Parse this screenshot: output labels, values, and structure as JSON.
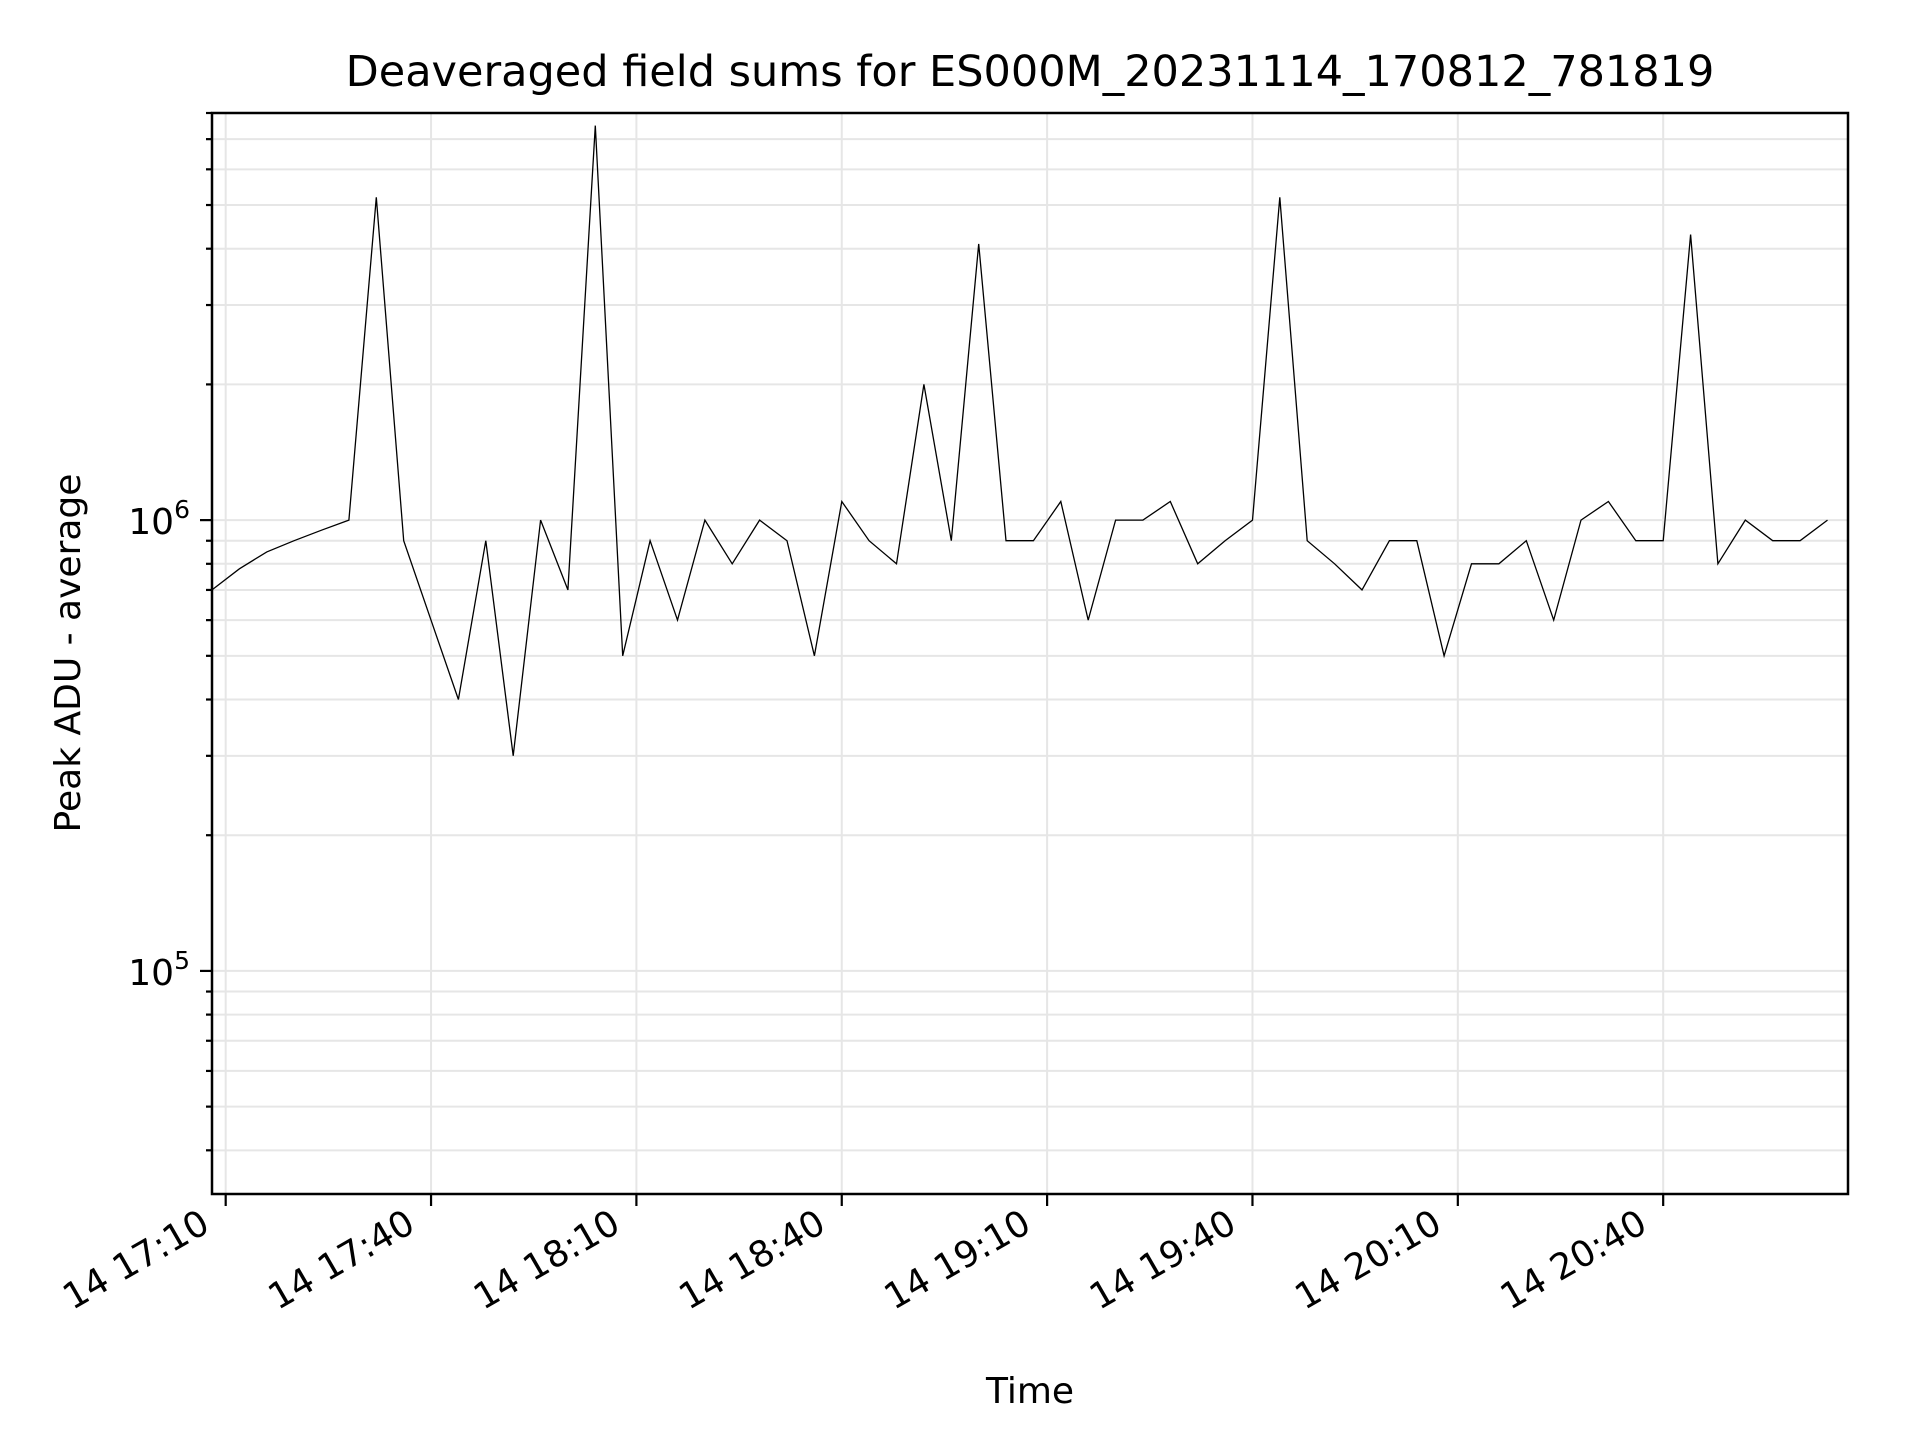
{
  "chart_data": {
    "type": "line",
    "title": "Deaveraged field sums for ES000M_20231114_170812_781819",
    "xlabel": "Time",
    "ylabel": "Peak ADU - average",
    "yscale": "log",
    "ylim": [
      32000,
      8000000
    ],
    "xlim": [
      "2023-11-14T17:08:00",
      "2023-11-14T21:07:00"
    ],
    "grid": true,
    "line_color": "#000000",
    "x_ticks": [
      {
        "value": "2023-11-14T17:10:00",
        "label": "14 17:10"
      },
      {
        "value": "2023-11-14T17:40:00",
        "label": "14 17:40"
      },
      {
        "value": "2023-11-14T18:10:00",
        "label": "14 18:10"
      },
      {
        "value": "2023-11-14T18:40:00",
        "label": "14 18:40"
      },
      {
        "value": "2023-11-14T19:10:00",
        "label": "14 19:10"
      },
      {
        "value": "2023-11-14T19:40:00",
        "label": "14 19:40"
      },
      {
        "value": "2023-11-14T20:10:00",
        "label": "14 20:10"
      },
      {
        "value": "2023-11-14T20:40:00",
        "label": "14 20:40"
      }
    ],
    "y_ticks": [
      {
        "value": 100000,
        "base": "10",
        "exp": "5"
      },
      {
        "value": 1000000,
        "base": "10",
        "exp": "6"
      }
    ],
    "series": [
      {
        "x": [
          "2023-11-14T17:08:00",
          "2023-11-14T17:12:00",
          "2023-11-14T17:16:00",
          "2023-11-14T17:20:00",
          "2023-11-14T17:24:00",
          "2023-11-14T17:28:00",
          "2023-11-14T17:32:00",
          "2023-11-14T17:36:00",
          "2023-11-14T17:40:00",
          "2023-11-14T17:44:00",
          "2023-11-14T17:48:00",
          "2023-11-14T17:52:00",
          "2023-11-14T17:56:00",
          "2023-11-14T18:00:00",
          "2023-11-14T18:04:00",
          "2023-11-14T18:08:00",
          "2023-11-14T18:12:00",
          "2023-11-14T18:16:00",
          "2023-11-14T18:20:00",
          "2023-11-14T18:24:00",
          "2023-11-14T18:28:00",
          "2023-11-14T18:32:00",
          "2023-11-14T18:36:00",
          "2023-11-14T18:40:00",
          "2023-11-14T18:44:00",
          "2023-11-14T18:48:00",
          "2023-11-14T18:52:00",
          "2023-11-14T18:56:00",
          "2023-11-14T19:00:00",
          "2023-11-14T19:04:00",
          "2023-11-14T19:08:00",
          "2023-11-14T19:12:00",
          "2023-11-14T19:16:00",
          "2023-11-14T19:20:00",
          "2023-11-14T19:24:00",
          "2023-11-14T19:28:00",
          "2023-11-14T19:32:00",
          "2023-11-14T19:36:00",
          "2023-11-14T19:40:00",
          "2023-11-14T19:44:00",
          "2023-11-14T19:48:00",
          "2023-11-14T19:52:00",
          "2023-11-14T19:56:00",
          "2023-11-14T20:00:00",
          "2023-11-14T20:04:00",
          "2023-11-14T20:08:00",
          "2023-11-14T20:12:00",
          "2023-11-14T20:16:00",
          "2023-11-14T20:20:00",
          "2023-11-14T20:24:00",
          "2023-11-14T20:28:00",
          "2023-11-14T20:32:00",
          "2023-11-14T20:36:00",
          "2023-11-14T20:40:00",
          "2023-11-14T20:44:00",
          "2023-11-14T20:48:00",
          "2023-11-14T20:52:00",
          "2023-11-14T20:56:00",
          "2023-11-14T21:00:00",
          "2023-11-14T21:04:00"
        ],
        "y": [
          700000,
          780000,
          850000,
          900000,
          950000,
          1000000,
          5200000,
          900000,
          600000,
          400000,
          900000,
          300000,
          1000000,
          700000,
          7500000,
          500000,
          900000,
          600000,
          1000000,
          800000,
          1000000,
          900000,
          500000,
          1100000,
          900000,
          800000,
          2000000,
          900000,
          4100000,
          900000,
          900000,
          1100000,
          600000,
          1000000,
          1000000,
          1100000,
          800000,
          900000,
          1000000,
          5200000,
          900000,
          800000,
          700000,
          900000,
          900000,
          500000,
          800000,
          800000,
          900000,
          600000,
          1000000,
          1100000,
          900000,
          900000,
          4300000,
          800000,
          1000000,
          900000,
          900000,
          1000000
        ]
      }
    ]
  }
}
